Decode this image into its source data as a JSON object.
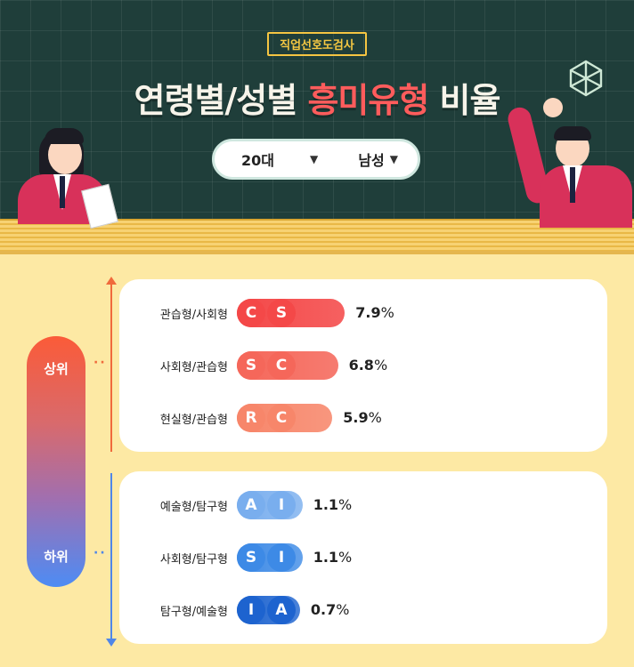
{
  "header": {
    "tag": "직업선호도검사",
    "title_prefix": "연령별/성별 ",
    "title_highlight": "흥미유형",
    "title_suffix": " 비율"
  },
  "filters": {
    "age": "20대",
    "gender": "남성"
  },
  "scale": {
    "top_label": "상위",
    "bottom_label": "하위"
  },
  "colors": {
    "title_highlight": "#ff5c5c",
    "top_gradient": [
      "#f03f3f",
      "#f7866a"
    ],
    "bottom_gradient": [
      "#1f6fd6",
      "#7fb2ee"
    ]
  },
  "chart_data": {
    "type": "bar",
    "groups": [
      {
        "name": "상위",
        "rows": [
          {
            "label": "관습형/사회형",
            "codes": [
              "C",
              "S"
            ],
            "value": 7.9,
            "display": "7.9",
            "unit": "%",
            "color": "#f44848"
          },
          {
            "label": "사회형/관습형",
            "codes": [
              "S",
              "C"
            ],
            "value": 6.8,
            "display": "6.8",
            "unit": "%",
            "color": "#f5675a"
          },
          {
            "label": "현실형/관습형",
            "codes": [
              "R",
              "C"
            ],
            "value": 5.9,
            "display": "5.9",
            "unit": "%",
            "color": "#f7866a"
          }
        ]
      },
      {
        "name": "하위",
        "rows": [
          {
            "label": "예술형/탐구형",
            "codes": [
              "A",
              "I"
            ],
            "value": 1.1,
            "display": "1.1",
            "unit": "%",
            "color": "#79aeee"
          },
          {
            "label": "사회형/탐구형",
            "codes": [
              "S",
              "I"
            ],
            "value": 1.1,
            "display": "1.1",
            "unit": "%",
            "color": "#3d8ae6"
          },
          {
            "label": "탐구형/예술형",
            "codes": [
              "I",
              "A"
            ],
            "value": 0.7,
            "display": "0.7",
            "unit": "%",
            "color": "#1d63cf"
          }
        ]
      }
    ]
  }
}
